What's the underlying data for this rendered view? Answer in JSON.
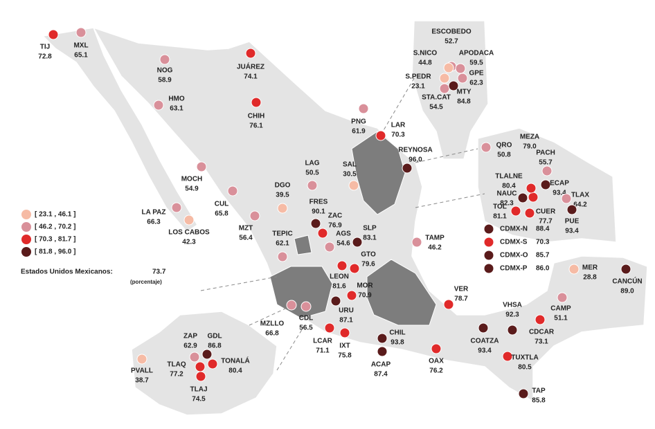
{
  "note": {
    "label": "Estados Unidos Mexicanos:",
    "value": 73.7,
    "unit": "(porcentaje)"
  },
  "legend": [
    {
      "value": [
        23.1,
        46.1
      ],
      "label": "[ 23.1 , 46.1 ]",
      "color": "#f6bba5"
    },
    {
      "value": [
        46.2,
        70.2
      ],
      "label": "[ 46.2 , 70.2 ]",
      "color": "#d9909a"
    },
    {
      "value": [
        70.3,
        81.7
      ],
      "label": "[ 70.3 , 81.7 ]",
      "color": "#e02a2a"
    },
    {
      "value": [
        81.8,
        96.0
      ],
      "label": "[ 81.8 , 96.0 ]",
      "color": "#5a1b1b"
    }
  ],
  "cities": [
    {
      "name": "TIJ",
      "value": 72.8
    },
    {
      "name": "MXL",
      "value": 65.1
    },
    {
      "name": "NOG",
      "value": 58.9
    },
    {
      "name": "HMO",
      "value": 63.1
    },
    {
      "name": "JUÁREZ",
      "value": 74.1
    },
    {
      "name": "CHIH",
      "value": 76.1
    },
    {
      "name": "PNG",
      "value": 61.9
    },
    {
      "name": "LAR",
      "value": 70.3
    },
    {
      "name": "REYNOSA",
      "value": 96,
      "value_label": "96.0"
    },
    {
      "name": "ESCOBEDO",
      "value": 52.7
    },
    {
      "name": "S.NICO",
      "value": 44.8
    },
    {
      "name": "APODACA",
      "value": 59.5
    },
    {
      "name": "S.PEDR",
      "value": 23.1
    },
    {
      "name": "GPE",
      "value": 62.3
    },
    {
      "name": "STA.CAT",
      "value": 54.5
    },
    {
      "name": "MTY",
      "value": 84.8
    },
    {
      "name": "QRO",
      "value": 50.8
    },
    {
      "name": "MEZA",
      "value": 79,
      "value_label": "79.0"
    },
    {
      "name": "PACH",
      "value": 55.7
    },
    {
      "name": "TLALNE",
      "value": 80.4
    },
    {
      "name": "ECAP",
      "value": 93.4
    },
    {
      "name": "TLAX",
      "value": 64.2
    },
    {
      "name": "NAUC",
      "value": 82.3
    },
    {
      "name": "TOL",
      "value": 81.1
    },
    {
      "name": "CUER",
      "value": 77.7
    },
    {
      "name": "PUE",
      "value": 93.4
    },
    {
      "name": "CDMX-N",
      "value": 88.4
    },
    {
      "name": "CDMX-S",
      "value": 70.3
    },
    {
      "name": "CDMX-O",
      "value": 85.7
    },
    {
      "name": "CDMX-P",
      "value": 86,
      "value_label": "86.0"
    },
    {
      "name": "MER",
      "value": 28.8
    },
    {
      "name": "CANCÚN",
      "value": 89,
      "value_label": "89.0"
    },
    {
      "name": "CAMP",
      "value": 51.1
    },
    {
      "name": "VHSA",
      "value": 92.3
    },
    {
      "name": "CDCAR",
      "value": 73.1
    },
    {
      "name": "COATZA",
      "value": 93.4
    },
    {
      "name": "TUXTLA",
      "value": 80.5
    },
    {
      "name": "TAP",
      "value": 85.8
    },
    {
      "name": "OAX",
      "value": 76.2
    },
    {
      "name": "VER",
      "value": 78.7
    },
    {
      "name": "CHIL",
      "value": 93.8
    },
    {
      "name": "ACAP",
      "value": 87.4
    },
    {
      "name": "IXT",
      "value": 75.8
    },
    {
      "name": "LCAR",
      "value": 71.1
    },
    {
      "name": "URU",
      "value": 87.1
    },
    {
      "name": "MOR",
      "value": 70.9
    },
    {
      "name": "LEON",
      "value": 81.6
    },
    {
      "name": "GTO",
      "value": 79.6
    },
    {
      "name": "SLP",
      "value": 83.1
    },
    {
      "name": "TAMP",
      "value": 46.2
    },
    {
      "name": "SAL",
      "value": 30.5
    },
    {
      "name": "LAG",
      "value": 50.5
    },
    {
      "name": "DGO",
      "value": 39.5
    },
    {
      "name": "FRES",
      "value": 90.1
    },
    {
      "name": "ZAC",
      "value": 76.9
    },
    {
      "name": "AGS",
      "value": 54.6
    },
    {
      "name": "TEPIC",
      "value": 62.1
    },
    {
      "name": "MZT",
      "value": 56.4
    },
    {
      "name": "CUL",
      "value": 65.8
    },
    {
      "name": "MOCH",
      "value": 54.9
    },
    {
      "name": "LA PAZ",
      "value": 66.3
    },
    {
      "name": "LOS CABOS",
      "value": 42.3
    },
    {
      "name": "MZLLO",
      "value": 66.8
    },
    {
      "name": "CDL",
      "value": 56.5
    },
    {
      "name": "ZAP",
      "value": 62.9
    },
    {
      "name": "GDL",
      "value": 86.8
    },
    {
      "name": "TLAQ",
      "value": 77.2
    },
    {
      "name": "TONALÁ",
      "value": 80.4
    },
    {
      "name": "TLAJ",
      "value": 74.5
    },
    {
      "name": "PVALL",
      "value": 38.7
    }
  ]
}
